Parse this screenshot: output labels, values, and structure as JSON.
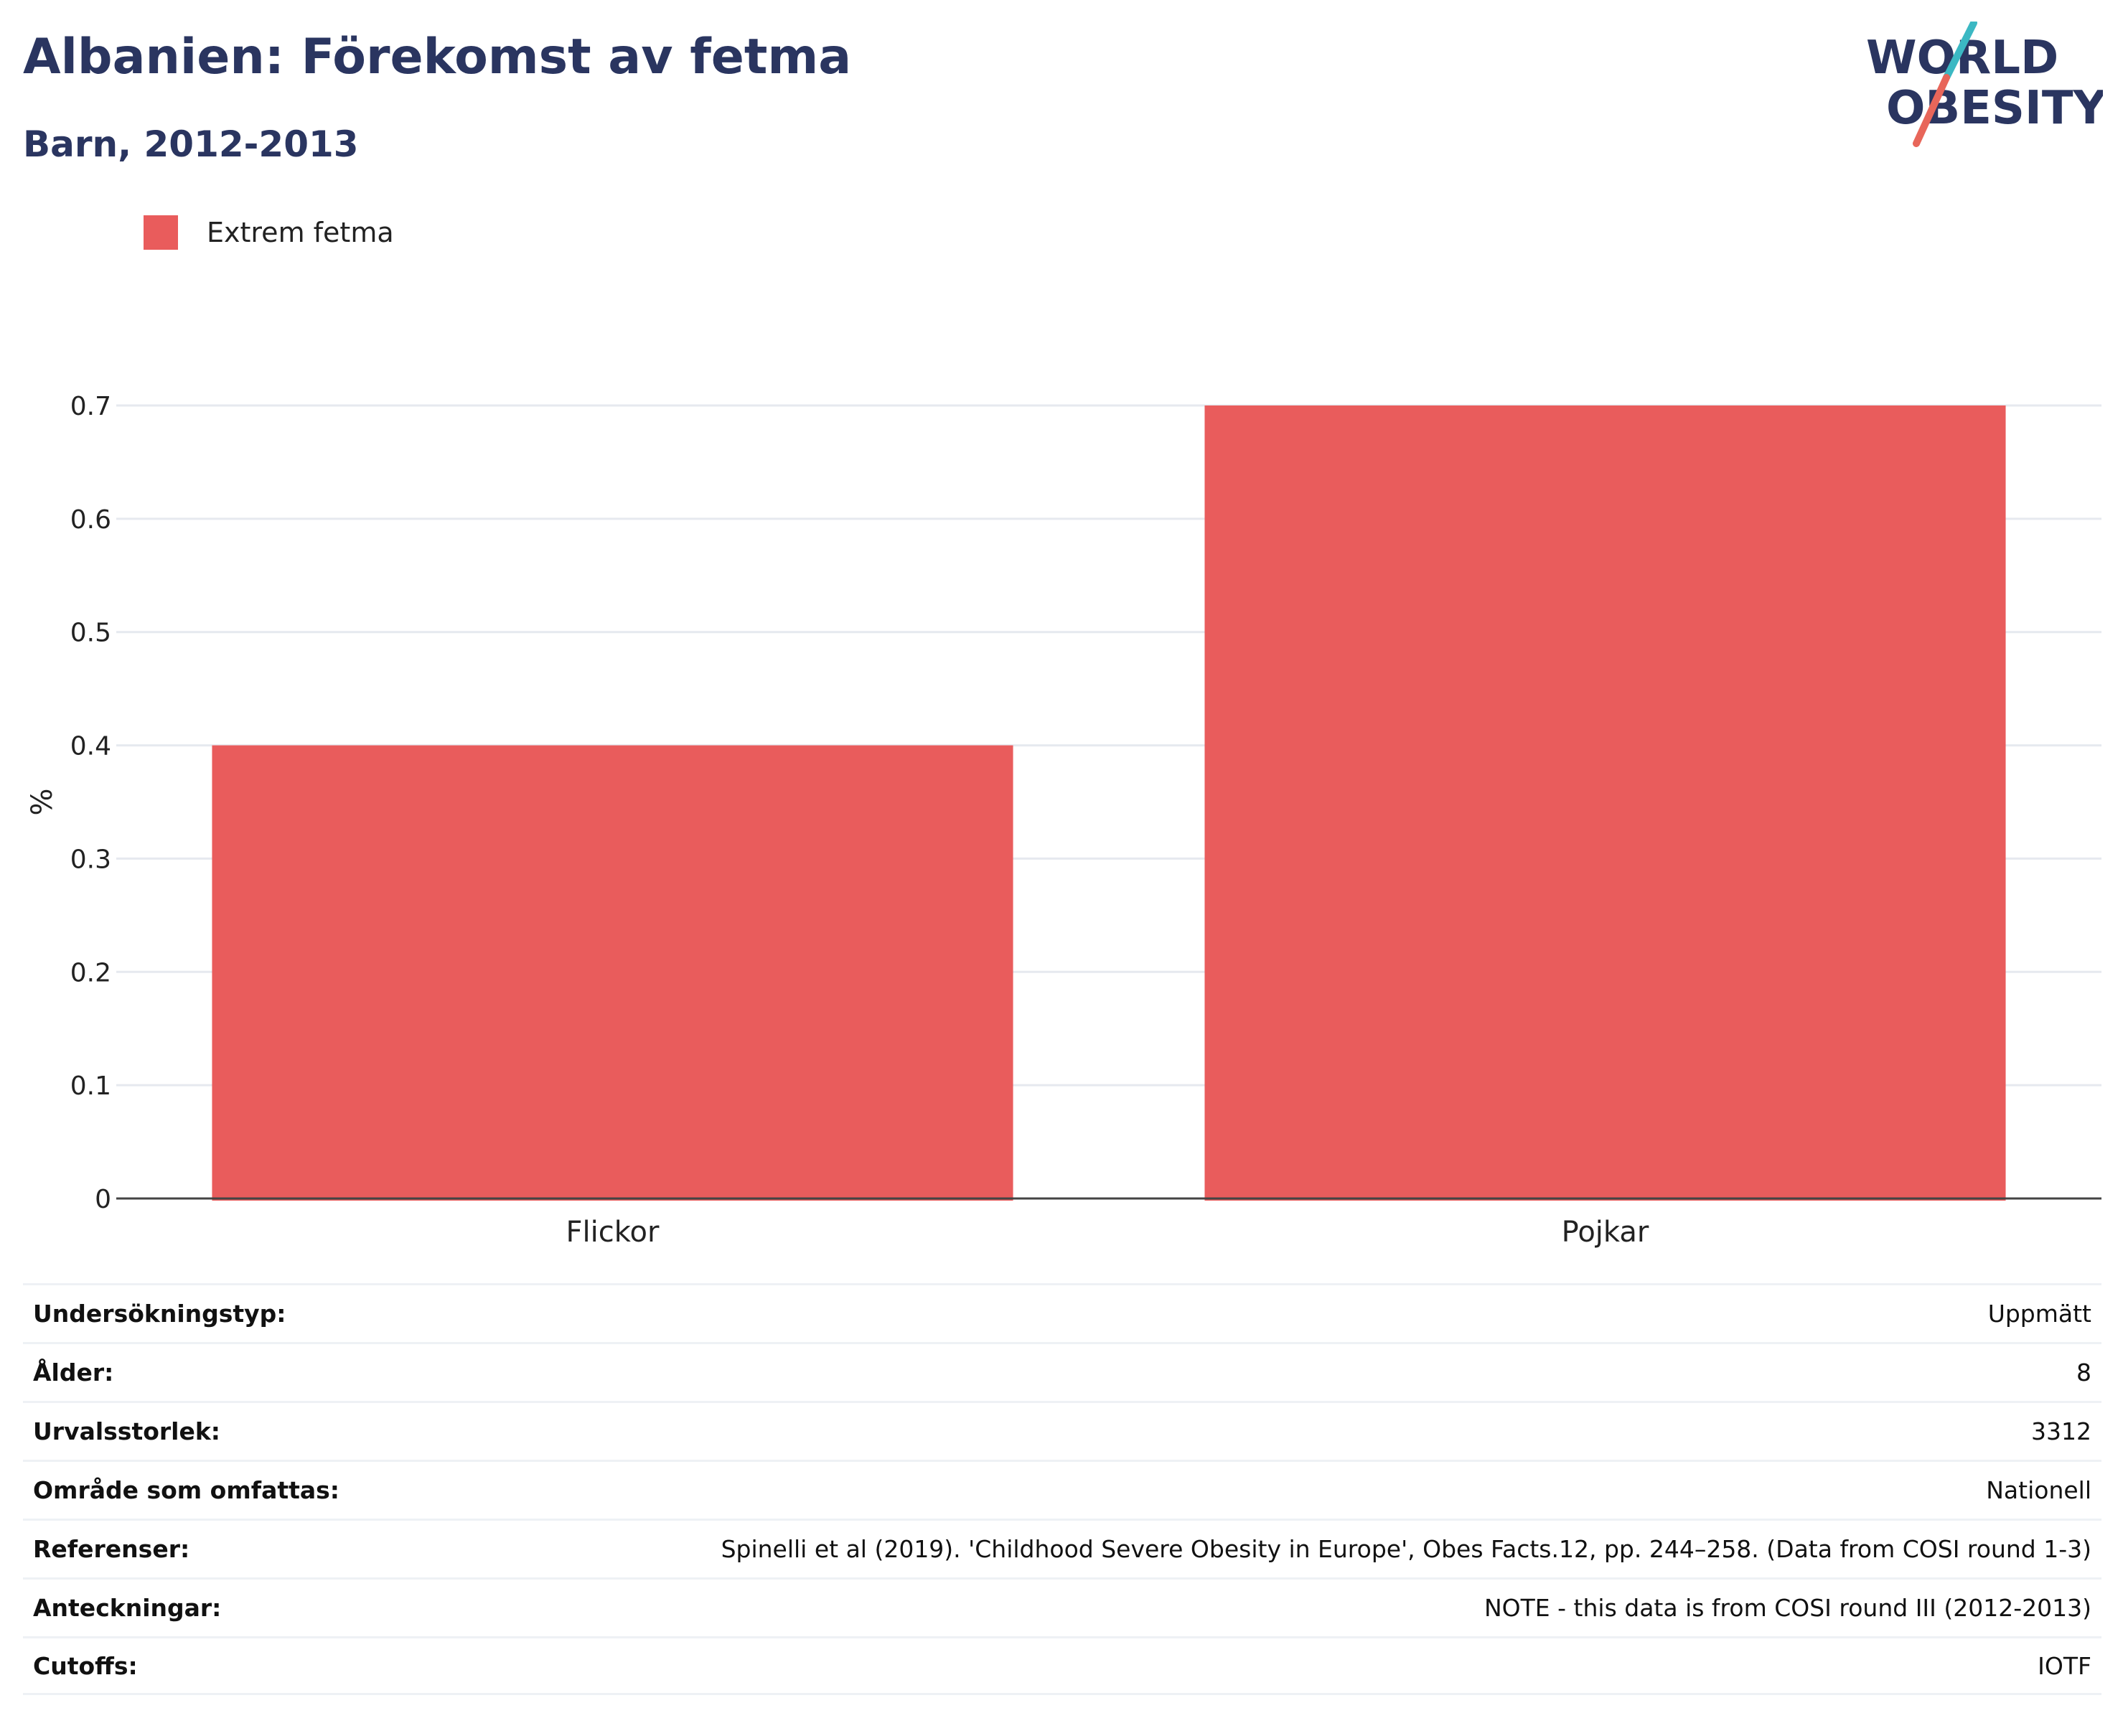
{
  "header": {
    "title": "Albanien: Förekomst av fetma",
    "subtitle": "Barn, 2012-2013"
  },
  "logo": {
    "line1": "WORLD",
    "line2": "OBESITY",
    "color_text": "#2a3560",
    "color_slash_top": "#3bb8c3",
    "color_slash_bottom": "#e8665a"
  },
  "chart_data": {
    "type": "bar",
    "categories": [
      "Flickor",
      "Pojkar"
    ],
    "series": [
      {
        "name": "Extrem fetma",
        "values": [
          0.4,
          0.7
        ],
        "color": "#e95c5c"
      }
    ],
    "ylabel": "%",
    "xlabel": "",
    "ylim": [
      0,
      0.7
    ],
    "yticks": [
      "0",
      "0.1",
      "0.2",
      "0.3",
      "0.4",
      "0.5",
      "0.6",
      "0.7"
    ],
    "grid": true,
    "legend": "top-left"
  },
  "details": [
    {
      "key": "Undersökningstyp:",
      "value": "Uppmätt"
    },
    {
      "key": "Ålder:",
      "value": "8"
    },
    {
      "key": "Urvalsstorlek:",
      "value": "3312"
    },
    {
      "key": "Område som omfattas:",
      "value": "Nationell"
    },
    {
      "key": "Referenser:",
      "value": "Spinelli et al (2019). 'Childhood Severe Obesity in Europe', Obes Facts.12, pp. 244–258. (Data from COSI round 1-3)"
    },
    {
      "key": "Anteckningar:",
      "value": "NOTE - this data is from COSI round III (2012-2013)"
    },
    {
      "key": "Cutoffs:",
      "value": "IOTF"
    }
  ]
}
